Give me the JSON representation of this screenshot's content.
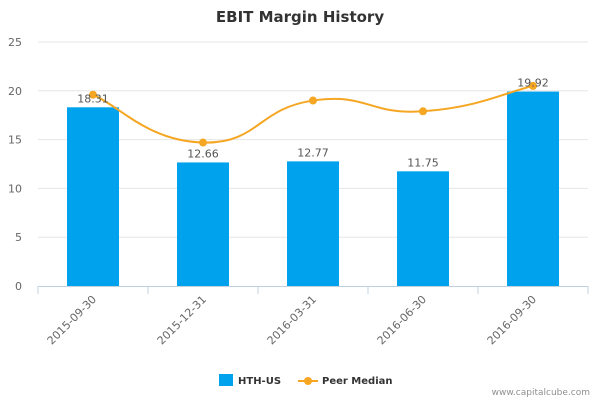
{
  "chart_data": {
    "type": "bar",
    "title": "EBIT Margin History",
    "xlabel": "",
    "ylabel": "",
    "categories": [
      "2015-09-30",
      "2015-12-31",
      "2016-03-31",
      "2016-06-30",
      "2016-09-30"
    ],
    "ylim": [
      0,
      25
    ],
    "yticks": [
      "0",
      "5",
      "10",
      "15",
      "20",
      "25"
    ],
    "grid": true,
    "legend_position": "bottom",
    "series": [
      {
        "name": "HTH-US",
        "type": "bar",
        "color": "#00a2ed",
        "values": [
          18.31,
          12.66,
          12.77,
          11.75,
          19.92
        ],
        "labels": [
          "18.31",
          "12.66",
          "12.77",
          "11.75",
          "19.92"
        ]
      },
      {
        "name": "Peer Median",
        "type": "line",
        "color": "#f5a623",
        "values": [
          19.6,
          14.7,
          19.0,
          17.9,
          20.5
        ]
      }
    ]
  },
  "credit": "www.capitalcube.com"
}
